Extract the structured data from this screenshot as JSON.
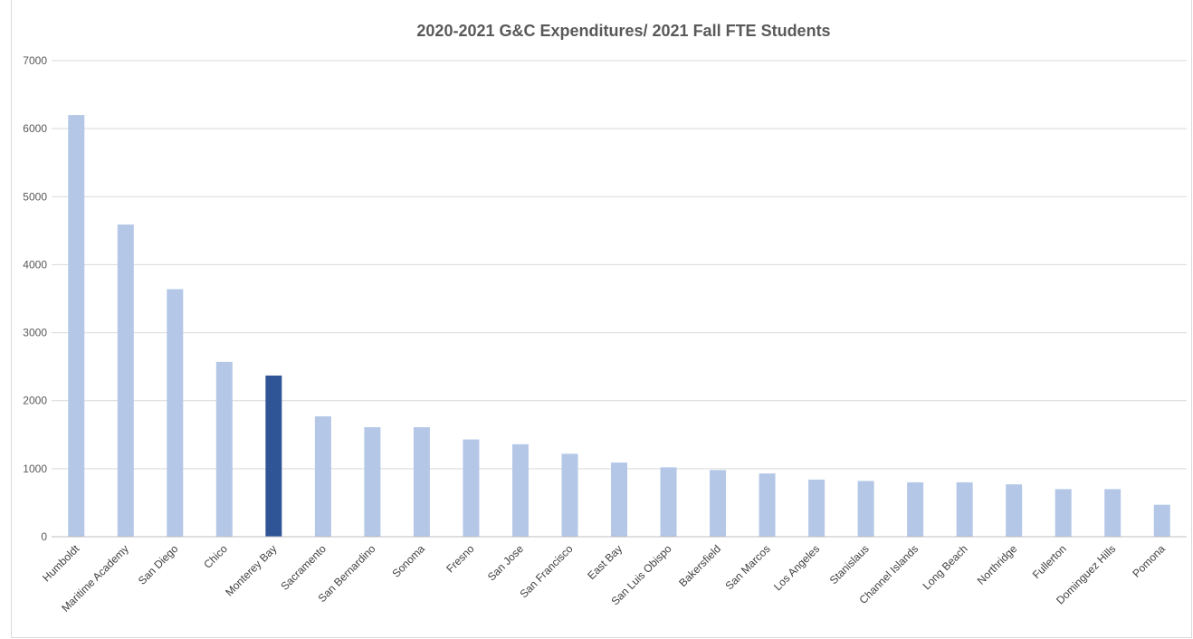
{
  "chart_data": {
    "type": "bar",
    "title": "2020-2021 G&C Expenditures/ 2021 Fall FTE Students",
    "xlabel": "",
    "ylabel": "",
    "ylim": [
      0,
      7000
    ],
    "y_ticks": [
      0,
      1000,
      2000,
      3000,
      4000,
      5000,
      6000,
      7000
    ],
    "grid": true,
    "legend": "none",
    "categories": [
      "Humboldt",
      "Maritime Academy",
      "San Diego",
      "Chico",
      "Monterey Bay",
      "Sacramento",
      "San Bernardino",
      "Sonoma",
      "Fresno",
      "San Jose",
      "San Francisco",
      "East Bay",
      "San Luis Obispo",
      "Bakersfield",
      "San Marcos",
      "Los Angeles",
      "Stanislaus",
      "Channel Islands",
      "Long Beach",
      "Northridge",
      "Fullerton",
      "Dominguez Hills",
      "Pomona"
    ],
    "values": [
      6200,
      4590,
      3640,
      2570,
      2370,
      1770,
      1610,
      1610,
      1430,
      1360,
      1220,
      1090,
      1020,
      980,
      930,
      840,
      820,
      800,
      800,
      770,
      700,
      700,
      470
    ],
    "highlight_category": "Monterey Bay",
    "colors": {
      "bar": "#b4c7e7",
      "highlight": "#2f5597"
    }
  }
}
